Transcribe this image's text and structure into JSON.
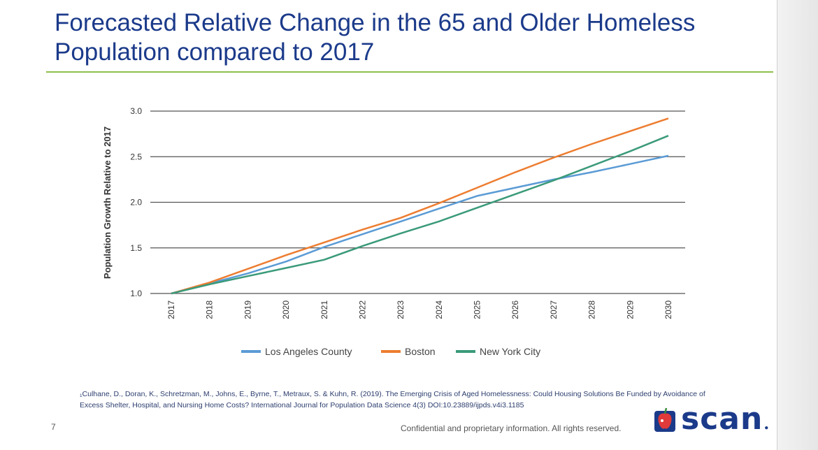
{
  "slide": {
    "title_line1": "Forecasted Relative Change in the 65 and Older Homeless",
    "title_line2": "Population compared to 2017",
    "citation_line1": "₁Culhane, D., Doran, K., Schretzman, M., Johns, E., Byrne, T., Metraux, S. & Kuhn, R. (2019). The Emerging Crisis of Aged Homelessness: Could Housing Solutions Be Funded by Avoidance of",
    "citation_line2": "Excess Shelter, Hospital, and Nursing Home Costs? International Journal for Population Data Science 4(3) DOI:10.23889/ijpds.v4i3.1185",
    "page_number": "7",
    "footer_text": "Confidential and proprietary information. All rights reserved.",
    "logo_text": "scan",
    "accent_color": "#1b3a8a",
    "rule_color": "#8dc04d"
  },
  "chart_data": {
    "type": "line",
    "x": [
      "2017",
      "2018",
      "2019",
      "2020",
      "2021",
      "2022",
      "2023",
      "2024",
      "2025",
      "2026",
      "2027",
      "2028",
      "2029",
      "2030"
    ],
    "ylabel": "Population Growth Relative to 2017",
    "ylim": [
      1.0,
      3.0
    ],
    "yticks": [
      "1.0",
      "1.5",
      "2.0",
      "2.5",
      "3.0"
    ],
    "grid": true,
    "legend_position": "bottom",
    "series": [
      {
        "name": "Los Angeles County",
        "color": "#5b9bd5",
        "values": [
          1.0,
          1.11,
          1.22,
          1.35,
          1.51,
          1.65,
          1.79,
          1.93,
          2.07,
          2.16,
          2.25,
          2.33,
          2.42,
          2.51
        ]
      },
      {
        "name": "Boston",
        "color": "#ed7d31",
        "values": [
          1.0,
          1.12,
          1.27,
          1.42,
          1.56,
          1.7,
          1.83,
          1.99,
          2.16,
          2.33,
          2.49,
          2.64,
          2.78,
          2.92
        ]
      },
      {
        "name": "New York City",
        "color": "#3a9a7a",
        "values": [
          1.0,
          1.1,
          1.19,
          1.28,
          1.37,
          1.52,
          1.66,
          1.79,
          1.94,
          2.09,
          2.24,
          2.4,
          2.56,
          2.73
        ]
      }
    ]
  }
}
